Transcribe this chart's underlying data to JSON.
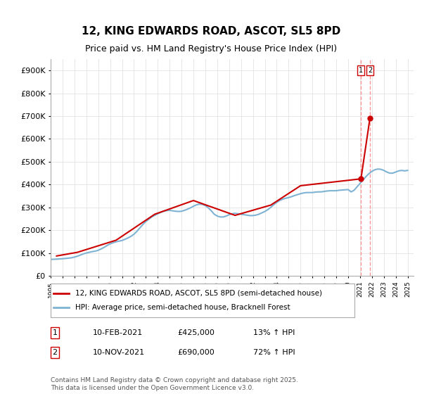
{
  "title": "12, KING EDWARDS ROAD, ASCOT, SL5 8PD",
  "subtitle": "Price paid vs. HM Land Registry's House Price Index (HPI)",
  "ylabel_ticks": [
    "£0",
    "£100K",
    "£200K",
    "£300K",
    "£400K",
    "£500K",
    "£600K",
    "£700K",
    "£800K",
    "£900K"
  ],
  "ytick_values": [
    0,
    100000,
    200000,
    300000,
    400000,
    500000,
    600000,
    700000,
    800000,
    900000
  ],
  "ylim": [
    0,
    950000
  ],
  "hpi_color": "#7fb3d3",
  "price_color": "#cc0000",
  "vline_color": "#ff9999",
  "legend_price_label": "12, KING EDWARDS ROAD, ASCOT, SL5 8PD (semi-detached house)",
  "legend_hpi_label": "HPI: Average price, semi-detached house, Bracknell Forest",
  "transaction1_num": "1",
  "transaction1_date": "10-FEB-2021",
  "transaction1_price": "£425,000",
  "transaction1_hpi": "13% ↑ HPI",
  "transaction2_num": "2",
  "transaction2_date": "10-NOV-2021",
  "transaction2_price": "£690,000",
  "transaction2_hpi": "72% ↑ HPI",
  "copyright_text": "Contains HM Land Registry data © Crown copyright and database right 2025.\nThis data is licensed under the Open Government Licence v3.0.",
  "hpi_data": {
    "years": [
      1995,
      1995.25,
      1995.5,
      1995.75,
      1996,
      1996.25,
      1996.5,
      1996.75,
      1997,
      1997.25,
      1997.5,
      1997.75,
      1998,
      1998.25,
      1998.5,
      1998.75,
      1999,
      1999.25,
      1999.5,
      1999.75,
      2000,
      2000.25,
      2000.5,
      2000.75,
      2001,
      2001.25,
      2001.5,
      2001.75,
      2002,
      2002.25,
      2002.5,
      2002.75,
      2003,
      2003.25,
      2003.5,
      2003.75,
      2004,
      2004.25,
      2004.5,
      2004.75,
      2005,
      2005.25,
      2005.5,
      2005.75,
      2006,
      2006.25,
      2006.5,
      2006.75,
      2007,
      2007.25,
      2007.5,
      2007.75,
      2008,
      2008.25,
      2008.5,
      2008.75,
      2009,
      2009.25,
      2009.5,
      2009.75,
      2010,
      2010.25,
      2010.5,
      2010.75,
      2011,
      2011.25,
      2011.5,
      2011.75,
      2012,
      2012.25,
      2012.5,
      2012.75,
      2013,
      2013.25,
      2013.5,
      2013.75,
      2014,
      2014.25,
      2014.5,
      2014.75,
      2015,
      2015.25,
      2015.5,
      2015.75,
      2016,
      2016.25,
      2016.5,
      2016.75,
      2017,
      2017.25,
      2017.5,
      2017.75,
      2018,
      2018.25,
      2018.5,
      2018.75,
      2019,
      2019.25,
      2019.5,
      2019.75,
      2020,
      2020.25,
      2020.5,
      2020.75,
      2021,
      2021.25,
      2021.5,
      2021.75,
      2022,
      2022.25,
      2022.5,
      2022.75,
      2023,
      2023.25,
      2023.5,
      2023.75,
      2024,
      2024.25,
      2024.5,
      2024.75,
      2025
    ],
    "values": [
      72000,
      72500,
      73000,
      74000,
      75000,
      76000,
      77500,
      79000,
      82000,
      86000,
      91000,
      96000,
      100000,
      103000,
      106000,
      108000,
      112000,
      118000,
      125000,
      133000,
      140000,
      145000,
      149000,
      152000,
      155000,
      160000,
      166000,
      173000,
      182000,
      195000,
      210000,
      225000,
      238000,
      248000,
      258000,
      265000,
      272000,
      278000,
      283000,
      286000,
      287000,
      285000,
      283000,
      282000,
      283000,
      287000,
      292000,
      298000,
      305000,
      311000,
      314000,
      313000,
      308000,
      298000,
      285000,
      270000,
      262000,
      258000,
      258000,
      262000,
      268000,
      272000,
      274000,
      272000,
      270000,
      268000,
      266000,
      264000,
      264000,
      266000,
      270000,
      276000,
      282000,
      290000,
      300000,
      312000,
      322000,
      330000,
      336000,
      340000,
      343000,
      347000,
      352000,
      356000,
      360000,
      363000,
      365000,
      365000,
      365000,
      367000,
      368000,
      368000,
      370000,
      372000,
      373000,
      373000,
      373000,
      375000,
      376000,
      377000,
      378000,
      368000,
      375000,
      390000,
      405000,
      420000,
      435000,
      448000,
      458000,
      465000,
      468000,
      467000,
      462000,
      455000,
      450000,
      450000,
      455000,
      460000,
      462000,
      460000,
      462000
    ]
  },
  "price_data": {
    "years": [
      1995.5,
      1997.25,
      2000.5,
      2003.75,
      2007.0,
      2010.5,
      2013.5,
      2016.0,
      2021.08,
      2021.83
    ],
    "values": [
      87000,
      103000,
      156000,
      270000,
      330000,
      265000,
      310000,
      395000,
      425000,
      690000
    ]
  },
  "transaction_years": [
    2021.08,
    2021.83
  ],
  "background_color": "#ffffff",
  "plot_bg_color": "#ffffff",
  "grid_color": "#dddddd",
  "xmin": 1995,
  "xmax": 2025.5
}
